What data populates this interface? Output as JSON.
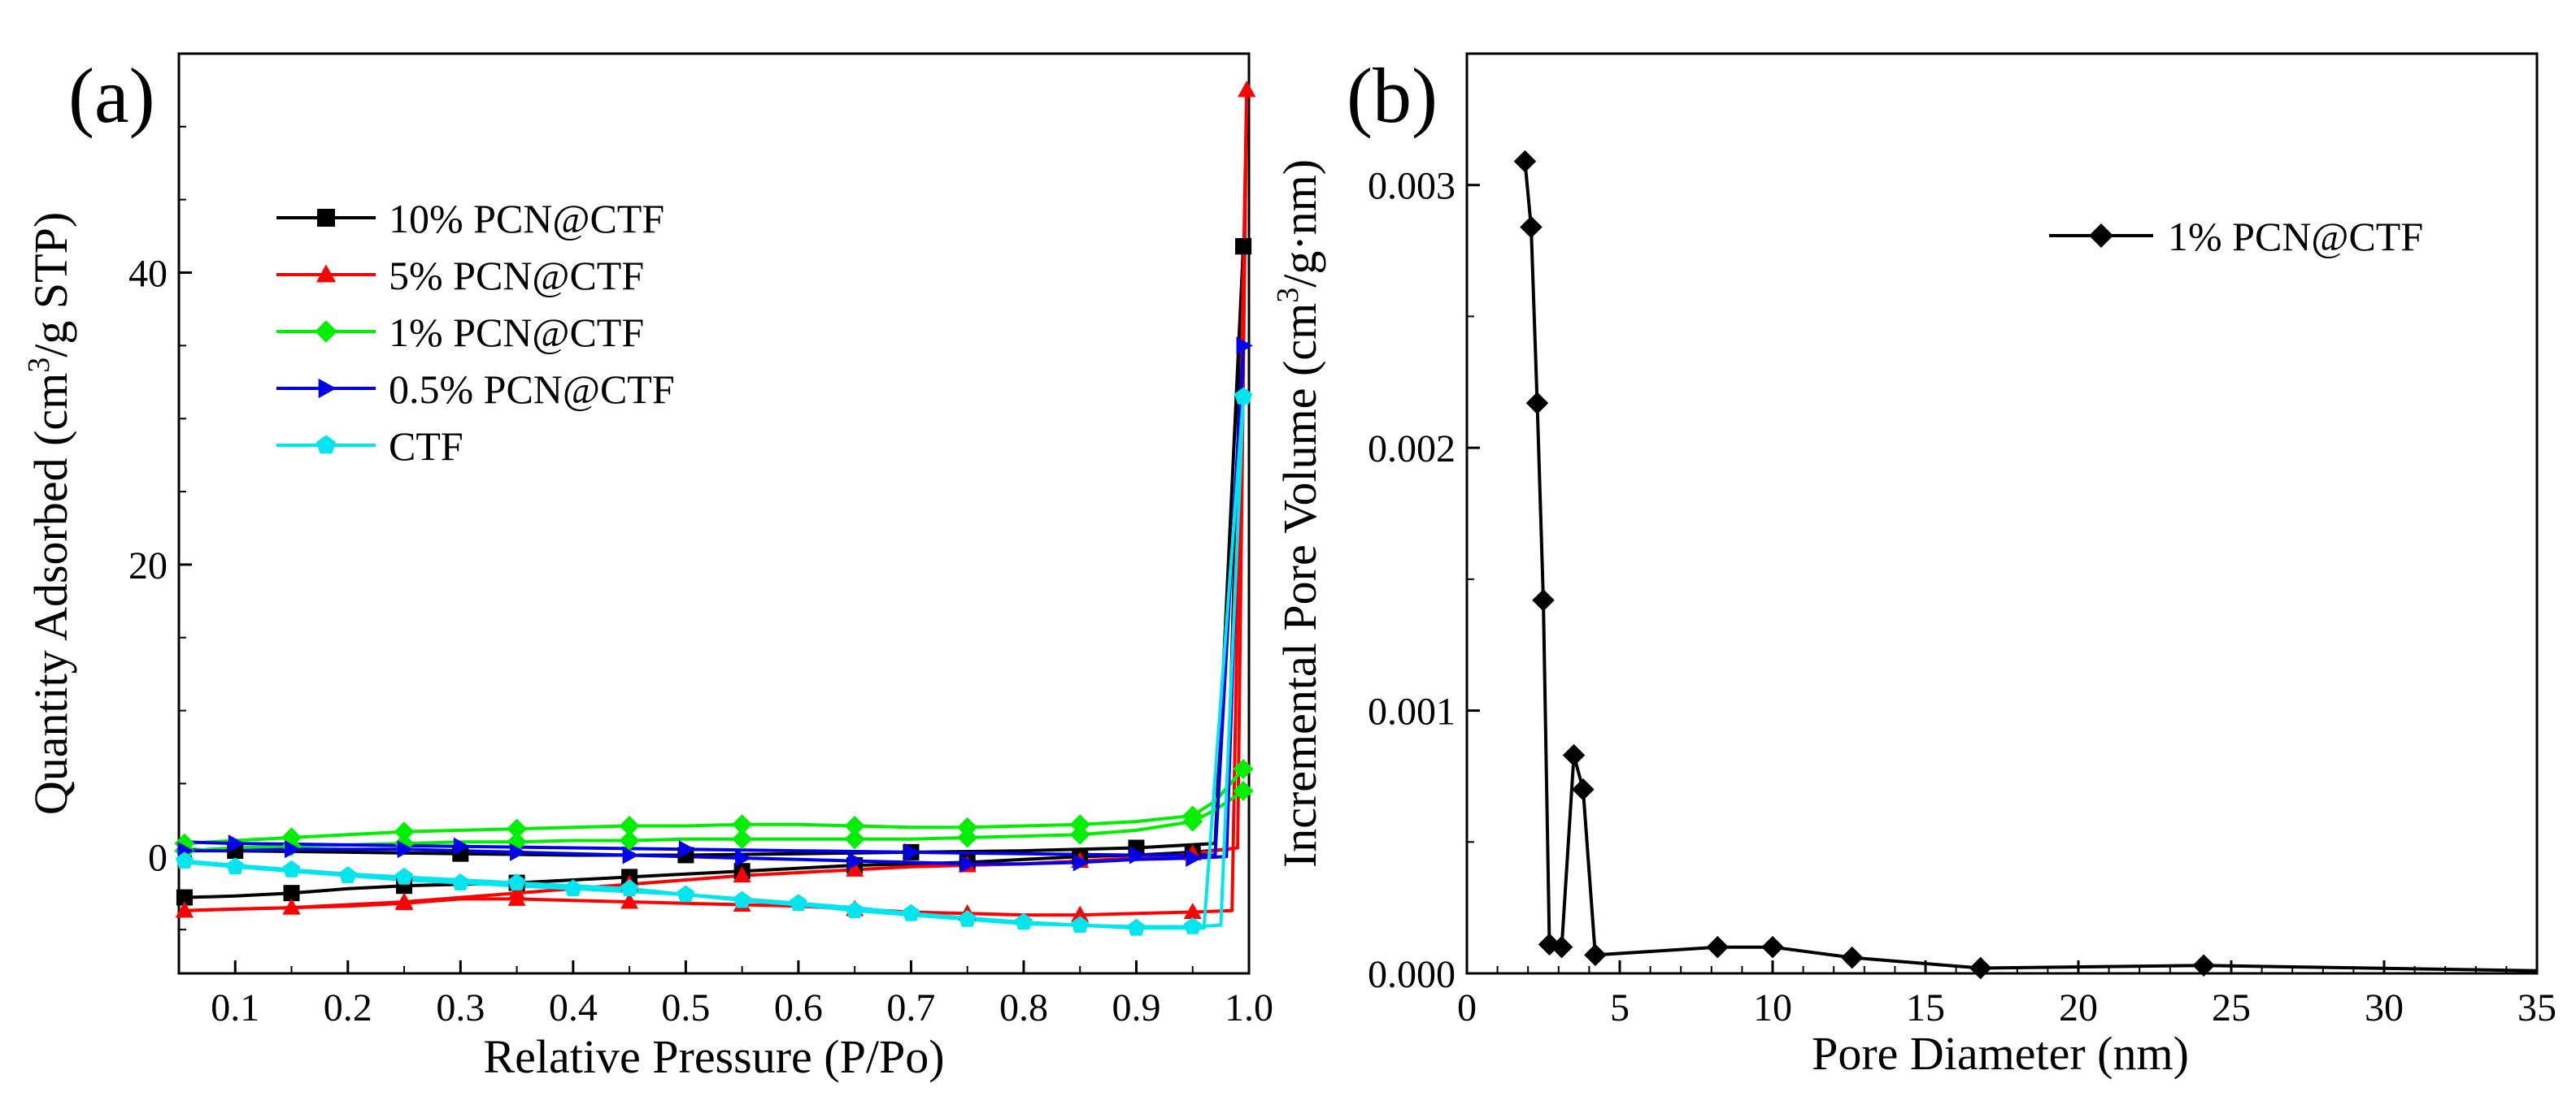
{
  "chart_data": [
    {
      "panel_label": "(a)",
      "type": "line",
      "xlabel": "Relative Pressure (P/Po)",
      "ylabel_pre": "Quantity Adsorbed (cm",
      "ylabel_sup": "3",
      "ylabel_post": "/g STP)",
      "xlim": [
        0.05,
        1.0
      ],
      "ylim": [
        -8,
        55
      ],
      "xticks": [
        0.1,
        0.2,
        0.3,
        0.4,
        0.5,
        0.6,
        0.7,
        0.8,
        0.9,
        1.0
      ],
      "xtick_labels": [
        "0.1",
        "0.2",
        "0.3",
        "0.4",
        "0.5",
        "0.6",
        "0.7",
        "0.8",
        "0.9",
        "1.0"
      ],
      "yticks": [
        0,
        20,
        40
      ],
      "ytick_labels": [
        "0",
        "20",
        "40"
      ],
      "legend_position": "upper-left",
      "series": [
        {
          "name": "10% PCN@CTF",
          "color": "#000000",
          "marker": "square",
          "adsorption": [
            [
              0.055,
              -2.8
            ],
            [
              0.1,
              -2.7
            ],
            [
              0.15,
              -2.5
            ],
            [
              0.2,
              -2.2
            ],
            [
              0.25,
              -2.0
            ],
            [
              0.3,
              -1.9
            ],
            [
              0.35,
              -1.8
            ],
            [
              0.4,
              -1.6
            ],
            [
              0.45,
              -1.4
            ],
            [
              0.5,
              -1.2
            ],
            [
              0.55,
              -1.0
            ],
            [
              0.6,
              -0.8
            ],
            [
              0.65,
              -0.6
            ],
            [
              0.7,
              -0.5
            ],
            [
              0.75,
              -0.4
            ],
            [
              0.8,
              -0.2
            ],
            [
              0.85,
              0.0
            ],
            [
              0.9,
              0.1
            ],
            [
              0.95,
              0.3
            ],
            [
              0.98,
              0.5
            ],
            [
              0.995,
              41.8
            ]
          ],
          "desorption": [
            [
              0.995,
              41.8
            ],
            [
              0.97,
              0.9
            ],
            [
              0.9,
              0.6
            ],
            [
              0.8,
              0.4
            ],
            [
              0.7,
              0.3
            ],
            [
              0.6,
              0.2
            ],
            [
              0.5,
              0.1
            ],
            [
              0.4,
              0.1
            ],
            [
              0.3,
              0.2
            ],
            [
              0.2,
              0.3
            ],
            [
              0.1,
              0.4
            ],
            [
              0.055,
              0.5
            ]
          ],
          "marker_step": 2
        },
        {
          "name": "5% PCN@CTF",
          "color": "#ff0000",
          "marker": "triangle",
          "adsorption": [
            [
              0.055,
              -3.7
            ],
            [
              0.1,
              -3.6
            ],
            [
              0.15,
              -3.5
            ],
            [
              0.2,
              -3.4
            ],
            [
              0.25,
              -3.2
            ],
            [
              0.3,
              -2.9
            ],
            [
              0.35,
              -2.9
            ],
            [
              0.4,
              -3.0
            ],
            [
              0.45,
              -3.1
            ],
            [
              0.5,
              -3.2
            ],
            [
              0.55,
              -3.3
            ],
            [
              0.6,
              -3.4
            ],
            [
              0.65,
              -3.6
            ],
            [
              0.7,
              -3.8
            ],
            [
              0.75,
              -3.9
            ],
            [
              0.8,
              -4.0
            ],
            [
              0.85,
              -4.0
            ],
            [
              0.9,
              -3.9
            ],
            [
              0.95,
              -3.8
            ],
            [
              0.985,
              -3.7
            ],
            [
              0.998,
              52.5
            ]
          ],
          "desorption": [
            [
              0.998,
              52.5
            ],
            [
              0.99,
              0.6
            ],
            [
              0.95,
              0.2
            ],
            [
              0.9,
              -0.1
            ],
            [
              0.85,
              -0.3
            ],
            [
              0.8,
              -0.5
            ],
            [
              0.75,
              -0.6
            ],
            [
              0.7,
              -0.7
            ],
            [
              0.65,
              -0.9
            ],
            [
              0.6,
              -1.1
            ],
            [
              0.55,
              -1.3
            ],
            [
              0.5,
              -1.6
            ],
            [
              0.45,
              -1.9
            ],
            [
              0.4,
              -2.2
            ],
            [
              0.35,
              -2.5
            ],
            [
              0.3,
              -2.8
            ],
            [
              0.25,
              -3.1
            ],
            [
              0.2,
              -3.3
            ],
            [
              0.15,
              -3.5
            ],
            [
              0.1,
              -3.6
            ],
            [
              0.055,
              -3.7
            ]
          ],
          "marker_step": 2
        },
        {
          "name": "1% PCN@CTF",
          "color": "#00ee00",
          "marker": "diamond",
          "adsorption": [
            [
              0.055,
              0.4
            ],
            [
              0.1,
              0.6
            ],
            [
              0.15,
              0.7
            ],
            [
              0.2,
              0.8
            ],
            [
              0.25,
              0.9
            ],
            [
              0.3,
              1.0
            ],
            [
              0.35,
              1.0
            ],
            [
              0.4,
              1.1
            ],
            [
              0.45,
              1.1
            ],
            [
              0.5,
              1.2
            ],
            [
              0.55,
              1.2
            ],
            [
              0.6,
              1.2
            ],
            [
              0.65,
              1.2
            ],
            [
              0.7,
              1.2
            ],
            [
              0.75,
              1.3
            ],
            [
              0.8,
              1.4
            ],
            [
              0.85,
              1.5
            ],
            [
              0.9,
              1.8
            ],
            [
              0.95,
              2.4
            ],
            [
              0.97,
              3.2
            ],
            [
              0.995,
              4.5
            ]
          ],
          "desorption": [
            [
              0.995,
              6.0
            ],
            [
              0.97,
              3.8
            ],
            [
              0.95,
              2.8
            ],
            [
              0.9,
              2.4
            ],
            [
              0.85,
              2.2
            ],
            [
              0.8,
              2.1
            ],
            [
              0.75,
              2.0
            ],
            [
              0.7,
              2.0
            ],
            [
              0.65,
              2.1
            ],
            [
              0.6,
              2.2
            ],
            [
              0.55,
              2.2
            ],
            [
              0.5,
              2.1
            ],
            [
              0.45,
              2.1
            ],
            [
              0.4,
              2.0
            ],
            [
              0.35,
              1.9
            ],
            [
              0.3,
              1.8
            ],
            [
              0.25,
              1.7
            ],
            [
              0.2,
              1.5
            ],
            [
              0.15,
              1.3
            ],
            [
              0.1,
              1.1
            ],
            [
              0.055,
              0.9
            ]
          ],
          "marker_step": 2
        },
        {
          "name": "0.5% PCN@CTF",
          "color": "#0000ee",
          "marker": "triangle-right",
          "adsorption": [
            [
              0.055,
              0.4
            ],
            [
              0.1,
              0.4
            ],
            [
              0.15,
              0.5
            ],
            [
              0.2,
              0.5
            ],
            [
              0.25,
              0.5
            ],
            [
              0.3,
              0.4
            ],
            [
              0.35,
              0.3
            ],
            [
              0.4,
              0.2
            ],
            [
              0.45,
              0.1
            ],
            [
              0.5,
              0.0
            ],
            [
              0.55,
              -0.1
            ],
            [
              0.6,
              -0.2
            ],
            [
              0.65,
              -0.3
            ],
            [
              0.7,
              -0.4
            ],
            [
              0.75,
              -0.5
            ],
            [
              0.8,
              -0.5
            ],
            [
              0.85,
              -0.4
            ],
            [
              0.9,
              -0.2
            ],
            [
              0.95,
              -0.1
            ],
            [
              0.98,
              0.0
            ],
            [
              0.995,
              35.0
            ]
          ],
          "desorption": [
            [
              0.995,
              35.0
            ],
            [
              0.97,
              0.1
            ],
            [
              0.9,
              0.1
            ],
            [
              0.8,
              0.2
            ],
            [
              0.7,
              0.3
            ],
            [
              0.6,
              0.4
            ],
            [
              0.5,
              0.5
            ],
            [
              0.4,
              0.6
            ],
            [
              0.3,
              0.7
            ],
            [
              0.2,
              0.8
            ],
            [
              0.1,
              0.9
            ],
            [
              0.055,
              1.0
            ]
          ],
          "marker_step": 2
        },
        {
          "name": "CTF",
          "color": "#00e5ee",
          "marker": "pentagon",
          "adsorption": [
            [
              0.055,
              -0.3
            ],
            [
              0.1,
              -0.6
            ],
            [
              0.15,
              -0.9
            ],
            [
              0.2,
              -1.2
            ],
            [
              0.25,
              -1.4
            ],
            [
              0.3,
              -1.6
            ],
            [
              0.35,
              -1.8
            ],
            [
              0.4,
              -2.0
            ],
            [
              0.45,
              -2.2
            ],
            [
              0.5,
              -2.6
            ],
            [
              0.55,
              -3.0
            ],
            [
              0.6,
              -3.3
            ],
            [
              0.65,
              -3.7
            ],
            [
              0.7,
              -4.0
            ],
            [
              0.75,
              -4.3
            ],
            [
              0.8,
              -4.6
            ],
            [
              0.85,
              -4.7
            ],
            [
              0.9,
              -4.8
            ],
            [
              0.95,
              -4.8
            ],
            [
              0.975,
              -4.7
            ],
            [
              0.995,
              31.5
            ]
          ],
          "desorption": [
            [
              0.995,
              31.5
            ],
            [
              0.96,
              -4.9
            ],
            [
              0.9,
              -4.9
            ],
            [
              0.85,
              -4.7
            ],
            [
              0.8,
              -4.5
            ],
            [
              0.75,
              -4.2
            ],
            [
              0.7,
              -3.9
            ],
            [
              0.65,
              -3.5
            ],
            [
              0.6,
              -3.2
            ],
            [
              0.55,
              -2.9
            ],
            [
              0.5,
              -2.6
            ],
            [
              0.45,
              -2.4
            ],
            [
              0.4,
              -2.2
            ],
            [
              0.35,
              -2.0
            ],
            [
              0.3,
              -1.8
            ],
            [
              0.25,
              -1.6
            ],
            [
              0.2,
              -1.3
            ],
            [
              0.15,
              -1.0
            ],
            [
              0.1,
              -0.7
            ],
            [
              0.055,
              -0.4
            ]
          ],
          "marker_step": 2
        }
      ]
    },
    {
      "panel_label": "(b)",
      "type": "line",
      "xlabel": "Pore Diameter (nm)",
      "ylabel_pre": "Incremental Pore Volume (cm",
      "ylabel_sup": "3",
      "ylabel_post": "/g·nm)",
      "xlim": [
        0,
        35
      ],
      "ylim": [
        0.0,
        0.0035
      ],
      "xticks": [
        0,
        5,
        10,
        15,
        20,
        25,
        30,
        35
      ],
      "xtick_labels": [
        "0",
        "5",
        "10",
        "15",
        "20",
        "25",
        "30",
        "35"
      ],
      "yticks": [
        0.0,
        0.001,
        0.002,
        0.003
      ],
      "ytick_labels": [
        "0.000",
        "0.001",
        "0.002",
        "0.003"
      ],
      "legend_position": "upper-right",
      "series": [
        {
          "name": "1% PCN@CTF",
          "color": "#000000",
          "marker": "diamond",
          "x": [
            1.9,
            2.1,
            2.3,
            2.5,
            2.7,
            3.1,
            3.5,
            3.8,
            4.2,
            8.2,
            10.0,
            12.6,
            16.8,
            24.1,
            35.0
          ],
          "y": [
            0.00309,
            0.00284,
            0.00217,
            0.00142,
            0.00011,
            0.0001,
            0.00083,
            0.0007,
            7e-05,
            0.0001,
            0.0001,
            6e-05,
            2e-05,
            3e-05,
            1e-05
          ],
          "marker_count": 14
        }
      ]
    }
  ]
}
